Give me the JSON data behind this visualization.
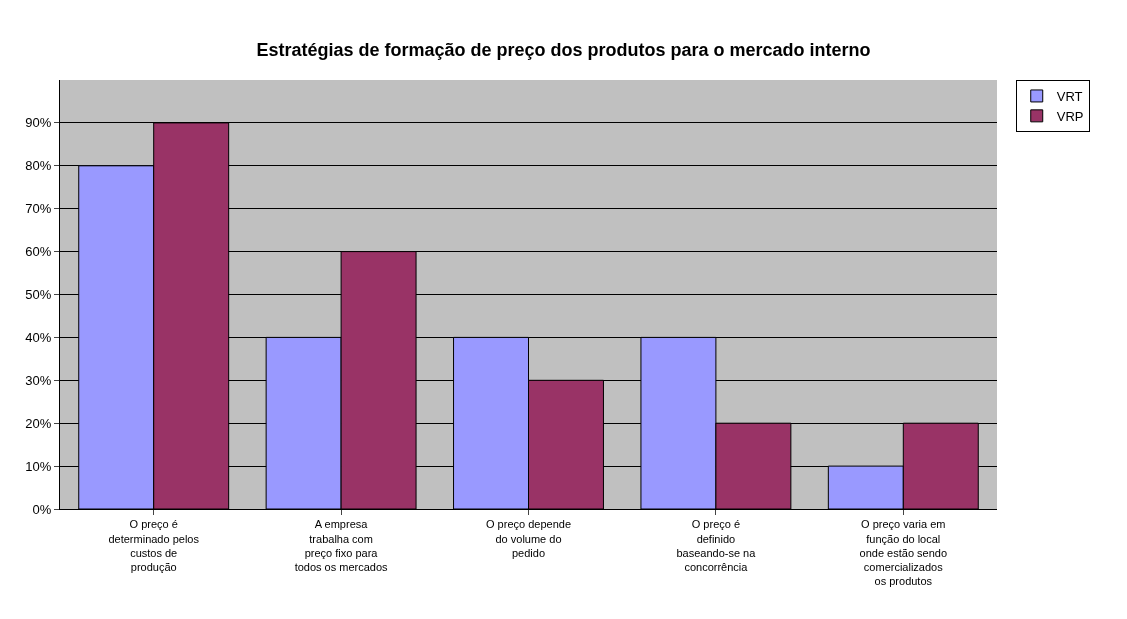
{
  "chart_data": {
    "type": "bar",
    "title": "Estratégias de formação de preço dos produtos para o mercado interno",
    "categories": [
      "O preço é determinado pelos custos de produção",
      "A empresa trabalha com preço fixo para todos os mercados",
      "O preço depende do volume do pedido",
      "O preço é definido baseando-se na concorrência",
      "O preço varia em função do local onde estão sendo comercializados os produtos"
    ],
    "series": [
      {
        "name": "VRT",
        "color": "#9999ff",
        "values": [
          80,
          40,
          40,
          40,
          10
        ]
      },
      {
        "name": "VRP",
        "color": "#993366",
        "values": [
          90,
          60,
          30,
          20,
          20
        ]
      }
    ],
    "ylim": [
      0,
      100
    ],
    "yticks": [
      {
        "value": 0,
        "label": "0%"
      },
      {
        "value": 10,
        "label": "10%"
      },
      {
        "value": 20,
        "label": "20%"
      },
      {
        "value": 30,
        "label": "30%"
      },
      {
        "value": 40,
        "label": "40%"
      },
      {
        "value": 50,
        "label": "50%"
      },
      {
        "value": 60,
        "label": "60%"
      },
      {
        "value": 70,
        "label": "70%"
      },
      {
        "value": 80,
        "label": "80%"
      },
      {
        "value": 90,
        "label": "90%"
      }
    ],
    "grid": "y",
    "legend": "top right"
  }
}
